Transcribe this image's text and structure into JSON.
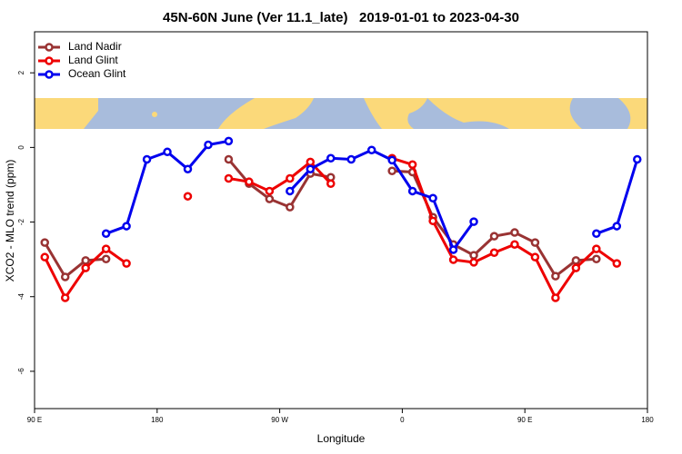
{
  "chart_data": {
    "type": "line",
    "title": "45N-60N June (Ver 11.1_late)   2019-01-01 to 2023-04-30",
    "xlabel": "Longitude",
    "ylabel": "XCO2 - MLO trend (ppm)",
    "x": [
      -262.5,
      -247.5,
      -232.5,
      -217.5,
      -202.5,
      -187.5,
      -172.5,
      -157.5,
      -142.5,
      -127.5,
      -112.5,
      -97.5,
      -82.5,
      -67.5,
      -52.5,
      -37.5,
      -22.5,
      -7.5,
      7.5,
      22.5,
      37.5,
      52.5,
      67.5,
      82.5,
      97.5,
      112.5,
      127.5,
      142.5,
      157.5,
      172.5
    ],
    "xlim": [
      -270,
      180
    ],
    "xticks": [
      {
        "value": -270,
        "label": "90 E"
      },
      {
        "value": -180,
        "label": "180"
      },
      {
        "value": -90,
        "label": "90 W"
      },
      0,
      {
        "value": 90,
        "label": "90 E"
      },
      180
    ],
    "ylim": [
      -7,
      3.1
    ],
    "yticks": [
      -6,
      -4,
      -2,
      0,
      2
    ],
    "legend": "upper left",
    "series": [
      {
        "name": "Land Nadir",
        "color": "#993333",
        "values": [
          -2.55,
          -3.47,
          -3.03,
          -2.99,
          null,
          null,
          null,
          null,
          null,
          -0.32,
          -0.97,
          -1.38,
          -1.6,
          -0.7,
          -0.8,
          null,
          null,
          -0.63,
          -0.66,
          -1.87,
          -2.6,
          -2.89,
          -2.38,
          -2.28,
          -2.55,
          -3.45,
          -3.03,
          -2.99,
          null,
          null
        ]
      },
      {
        "name": "Land Glint",
        "color": "#ee0000",
        "values": [
          -2.94,
          -4.03,
          -3.23,
          -2.72,
          -3.11,
          null,
          null,
          -1.31,
          null,
          -0.83,
          -0.92,
          -1.17,
          -0.83,
          -0.39,
          -0.97,
          null,
          null,
          -0.29,
          -0.46,
          -1.97,
          -3.01,
          -3.08,
          -2.82,
          -2.6,
          -2.94,
          -4.03,
          -3.23,
          -2.72,
          -3.11,
          null
        ]
      },
      {
        "name": "Ocean Glint",
        "color": "#0000ee",
        "values": [
          null,
          null,
          null,
          -2.31,
          -2.11,
          -0.32,
          -0.12,
          -0.58,
          0.07,
          0.17,
          null,
          null,
          -1.17,
          -0.58,
          -0.29,
          -0.32,
          -0.07,
          -0.34,
          -1.17,
          -1.36,
          -2.74,
          -1.99,
          null,
          null,
          null,
          null,
          null,
          -2.31,
          -2.11,
          -0.32
        ]
      }
    ]
  }
}
